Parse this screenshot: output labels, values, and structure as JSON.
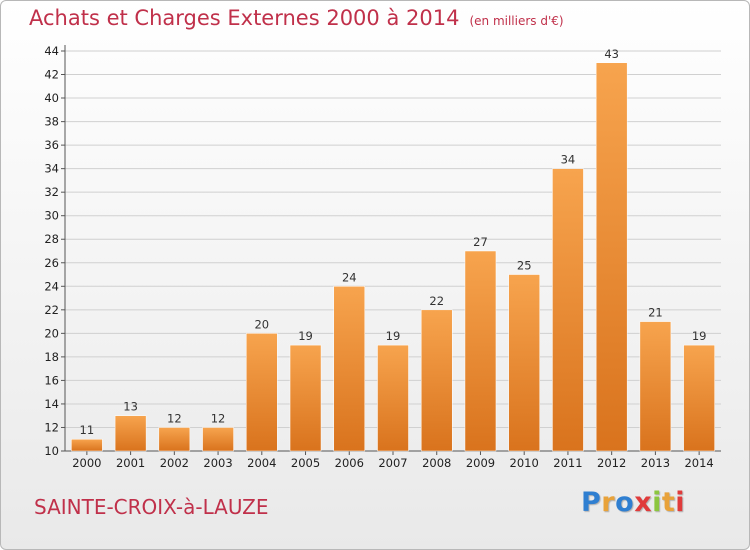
{
  "header": {
    "title": "Achats et Charges Externes 2000 à 2014",
    "subtitle": "(en milliers d'€)"
  },
  "footer": {
    "commune": "SAINTE-CROIX-à-LAUZE",
    "brand": {
      "text": "Proxiti",
      "letter_colors": [
        "#2f7fd1",
        "#e8a23a",
        "#2f7fd1",
        "#e03b3b",
        "#8cc63f",
        "#e8a23a",
        "#e03b3b"
      ]
    }
  },
  "colors": {
    "bar_light": "#f7a44e",
    "bar_dark": "#d9731d",
    "title": "#c0304a",
    "grid": "#d0d0d0"
  },
  "chart_data": {
    "type": "bar",
    "title": "Achats et Charges Externes 2000 à 2014",
    "subtitle": "(en milliers d'€)",
    "xlabel": "",
    "ylabel": "",
    "categories": [
      "2000",
      "2001",
      "2002",
      "2003",
      "2004",
      "2005",
      "2006",
      "2007",
      "2008",
      "2009",
      "2010",
      "2011",
      "2012",
      "2013",
      "2014"
    ],
    "values": [
      11,
      13,
      12,
      12,
      20,
      19,
      24,
      19,
      22,
      27,
      25,
      34,
      43,
      21,
      19
    ],
    "ylim": [
      10,
      44
    ],
    "yticks": [
      10,
      12,
      14,
      16,
      18,
      20,
      22,
      24,
      26,
      28,
      30,
      32,
      34,
      36,
      38,
      40,
      42,
      44
    ],
    "grid": true,
    "legend": "none"
  }
}
